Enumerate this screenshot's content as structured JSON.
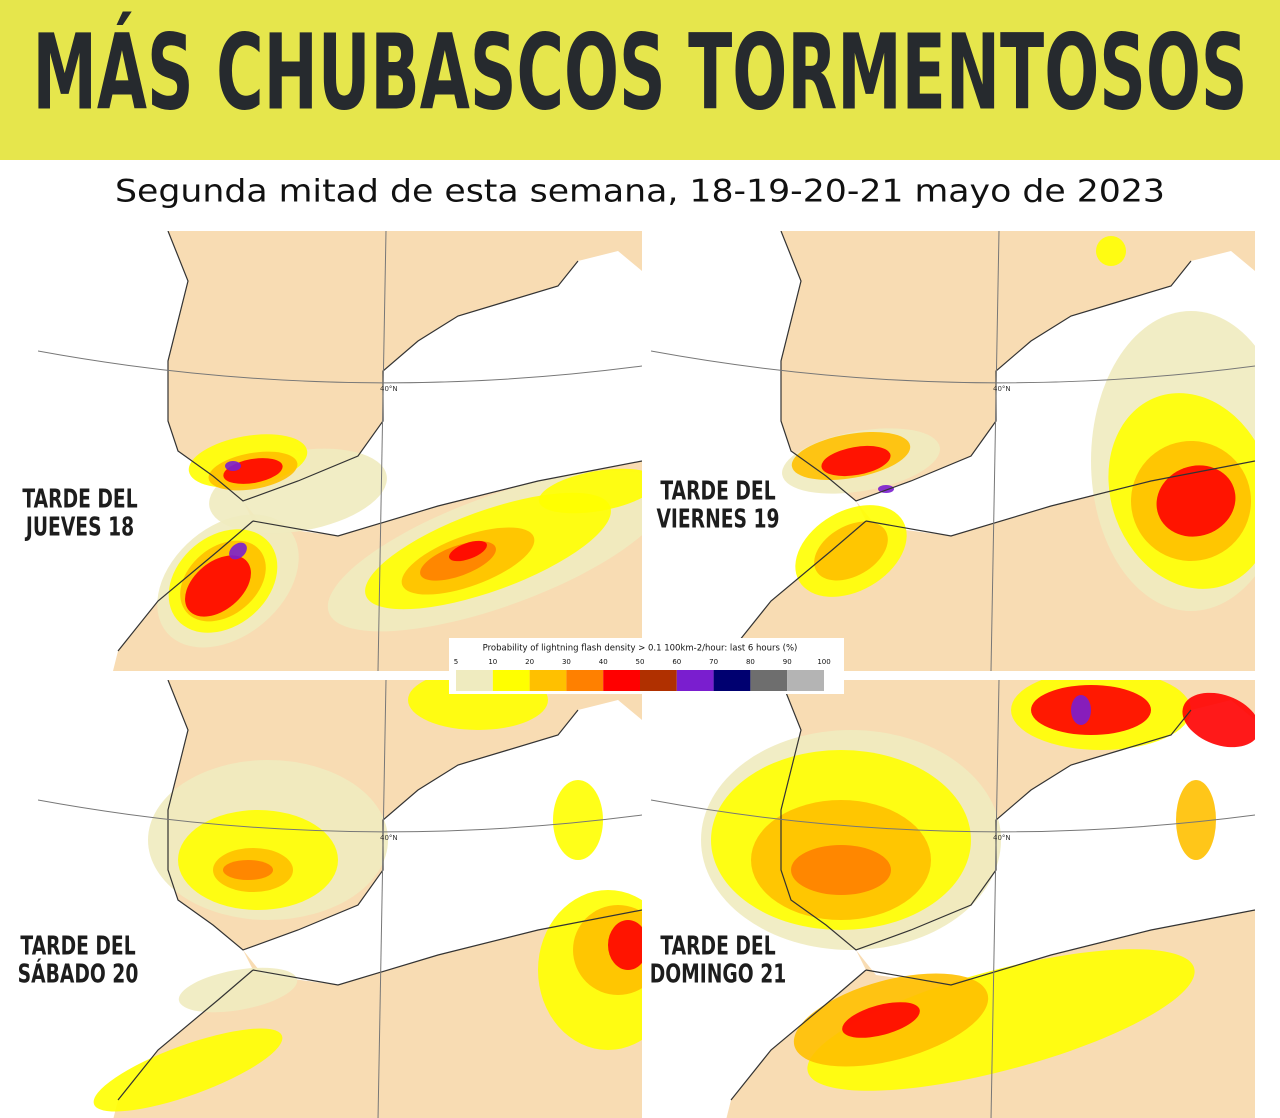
{
  "header": {
    "title": "MÁS CHUBASCOS TORMENTOSOS",
    "subtitle": "Segunda mitad de esta semana, 18-19-20-21 mayo de 2023"
  },
  "panels": [
    {
      "label_lines": [
        "TARDE DEL",
        "JUEVES 18"
      ],
      "parallel_label": "40°N"
    },
    {
      "label_lines": [
        "TARDE DEL",
        "VIERNES 19"
      ],
      "parallel_label": "40°N"
    },
    {
      "label_lines": [
        "TARDE DEL",
        "SÁBADO 20"
      ],
      "parallel_label": "40°N"
    },
    {
      "label_lines": [
        "TARDE DEL",
        "DOMINGO 21"
      ],
      "parallel_label": "40°N"
    }
  ],
  "legend": {
    "title": "Probability of lightning flash density > 0.1 100km-2/hour: last 6 hours (%)",
    "ticks": [
      5,
      10,
      20,
      30,
      40,
      50,
      60,
      70,
      80,
      90,
      100
    ],
    "colors": [
      "#efebbf",
      "#ffff00",
      "#ffc000",
      "#ff8000",
      "#ff0000",
      "#b03000",
      "#7a1ecf",
      "#000070",
      "#6e6e6e",
      "#b4b4b4"
    ]
  }
}
